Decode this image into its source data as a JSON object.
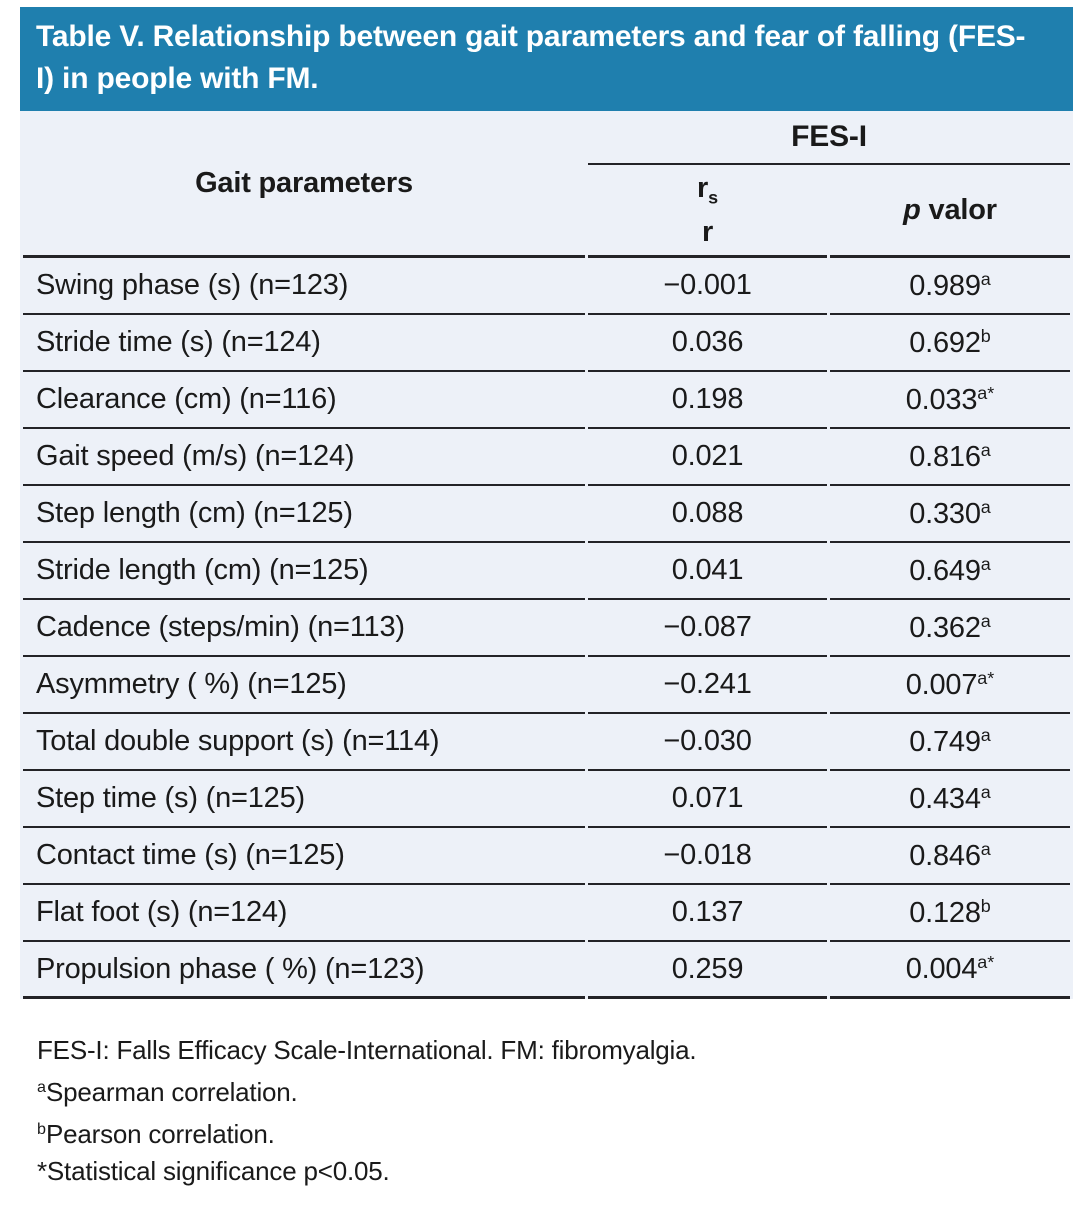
{
  "title": "Table V. Relationship between gait parameters and fear of falling (FES-I) in people with FM.",
  "colors": {
    "banner": "#1f7fae",
    "table_bg": "#edf1f8",
    "rule": "#232327"
  },
  "table": {
    "col1_header": "Gait parameters",
    "group_header": "FES-I",
    "col2_header": {
      "base": "r",
      "sub": "s",
      "second_line": "r"
    },
    "col3_header": {
      "italic": "p",
      "rest": " valor"
    },
    "rows": [
      {
        "param": "Swing phase (s) (n=123)",
        "r": "−0.001",
        "p": "0.989",
        "sup": "a"
      },
      {
        "param": "Stride time (s) (n=124)",
        "r": "0.036",
        "p": "0.692",
        "sup": "b"
      },
      {
        "param": "Clearance (cm) (n=116)",
        "r": "0.198",
        "p": "0.033",
        "sup": "a*"
      },
      {
        "param": "Gait speed (m/s) (n=124)",
        "r": "0.021",
        "p": "0.816",
        "sup": "a"
      },
      {
        "param": "Step length (cm) (n=125)",
        "r": "0.088",
        "p": "0.330",
        "sup": "a"
      },
      {
        "param": "Stride length (cm) (n=125)",
        "r": "0.041",
        "p": "0.649",
        "sup": "a"
      },
      {
        "param": "Cadence (steps/min) (n=113)",
        "r": "−0.087",
        "p": "0.362",
        "sup": "a"
      },
      {
        "param": "Asymmetry ( %) (n=125)",
        "r": "−0.241",
        "p": "0.007",
        "sup": "a*"
      },
      {
        "param": "Total double support (s) (n=114)",
        "r": "−0.030",
        "p": "0.749",
        "sup": "a"
      },
      {
        "param": "Step time (s) (n=125)",
        "r": "0.071",
        "p": "0.434",
        "sup": "a"
      },
      {
        "param": "Contact time (s) (n=125)",
        "r": "−0.018",
        "p": "0.846",
        "sup": "a"
      },
      {
        "param": "Flat foot (s) (n=124)",
        "r": "0.137",
        "p": "0.128",
        "sup": "b"
      },
      {
        "param": "Propulsion phase ( %) (n=123)",
        "r": "0.259",
        "p": "0.004",
        "sup": "a*"
      }
    ]
  },
  "footnotes": [
    {
      "sup": "",
      "text": "FES-I: Falls Efficacy Scale-International. FM: fibromyalgia."
    },
    {
      "sup": "a",
      "text": "Spearman correlation."
    },
    {
      "sup": "b",
      "text": "Pearson correlation."
    },
    {
      "sup": "",
      "text": "*Statistical significance p<0.05."
    }
  ]
}
